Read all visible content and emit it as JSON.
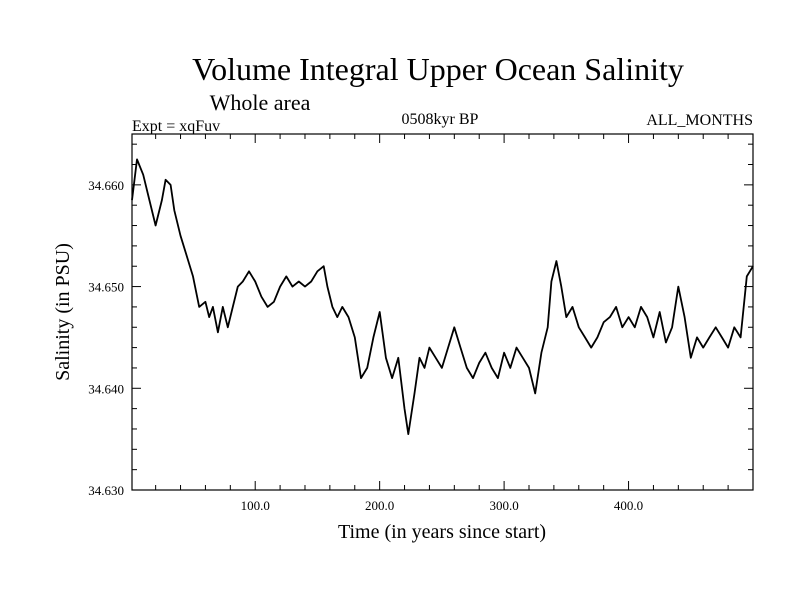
{
  "chart_data": {
    "type": "line",
    "title": "Volume Integral Upper Ocean Salinity",
    "subtitle": "Whole area",
    "experiment_label": "Expt = xqFuv",
    "period_label": "0508kyr BP",
    "months_label": "ALL_MONTHS",
    "xlabel": "Time (in years since start)",
    "ylabel": "Salinity (in PSU)",
    "xlim": [
      1,
      500
    ],
    "ylim": [
      34.63,
      34.665
    ],
    "x_ticks": [
      100,
      200,
      300,
      400
    ],
    "x_tick_labels": [
      "100.0",
      "200.0",
      "300.0",
      "400.0"
    ],
    "y_ticks": [
      34.63,
      34.64,
      34.65,
      34.66
    ],
    "y_tick_labels": [
      "34.630",
      "34.640",
      "34.650",
      "34.660"
    ],
    "series": [
      {
        "name": "salinity",
        "color": "#000000",
        "x": [
          1,
          5,
          10,
          15,
          20,
          25,
          28,
          32,
          35,
          40,
          45,
          50,
          55,
          60,
          63,
          66,
          70,
          74,
          78,
          82,
          86,
          90,
          95,
          100,
          105,
          110,
          115,
          120,
          125,
          130,
          135,
          140,
          145,
          150,
          155,
          158,
          162,
          166,
          170,
          175,
          180,
          185,
          190,
          195,
          200,
          205,
          210,
          215,
          220,
          223,
          228,
          232,
          236,
          240,
          245,
          250,
          255,
          260,
          265,
          270,
          275,
          280,
          285,
          290,
          295,
          300,
          305,
          310,
          315,
          320,
          325,
          330,
          335,
          338,
          342,
          346,
          350,
          355,
          360,
          365,
          370,
          375,
          380,
          385,
          390,
          395,
          400,
          405,
          410,
          415,
          420,
          425,
          430,
          435,
          440,
          445,
          450,
          455,
          460,
          465,
          470,
          475,
          480,
          485,
          490,
          495,
          500
        ],
        "values": [
          34.6585,
          34.6625,
          34.661,
          34.6585,
          34.656,
          34.6585,
          34.6605,
          34.66,
          34.6575,
          34.655,
          34.653,
          34.651,
          34.648,
          34.6485,
          34.647,
          34.648,
          34.6455,
          34.648,
          34.646,
          34.648,
          34.65,
          34.6505,
          34.6515,
          34.6505,
          34.649,
          34.648,
          34.6485,
          34.65,
          34.651,
          34.65,
          34.6505,
          34.65,
          34.6505,
          34.6515,
          34.652,
          34.65,
          34.648,
          34.647,
          34.648,
          34.647,
          34.645,
          34.641,
          34.642,
          34.645,
          34.6475,
          34.643,
          34.641,
          34.643,
          34.638,
          34.6355,
          34.6395,
          34.643,
          34.642,
          34.644,
          34.643,
          34.642,
          34.644,
          34.646,
          34.644,
          34.642,
          34.641,
          34.6425,
          34.6435,
          34.642,
          34.641,
          34.6435,
          34.642,
          34.644,
          34.643,
          34.642,
          34.6395,
          34.6435,
          34.646,
          34.6505,
          34.6525,
          34.65,
          34.647,
          34.648,
          34.646,
          34.645,
          34.644,
          34.645,
          34.6465,
          34.647,
          34.648,
          34.646,
          34.647,
          34.646,
          34.648,
          34.647,
          34.645,
          34.6475,
          34.6445,
          34.646,
          34.65,
          34.647,
          34.643,
          34.645,
          34.644,
          34.645,
          34.646,
          34.645,
          34.644,
          34.646,
          34.645,
          34.651,
          34.652
        ]
      }
    ]
  }
}
